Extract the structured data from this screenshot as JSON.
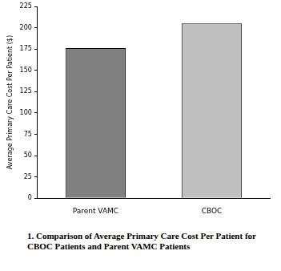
{
  "chart_data": {
    "type": "bar",
    "title": "1.  Comparison of Average Primary Care Cost Per Patient for CBOC Patients and Parent VAMC Patients",
    "y_label": "Average Primary Care Cost Per Patient ($)",
    "categories": [
      "Parent VAMC",
      "CBOC"
    ],
    "values": [
      176,
      205
    ],
    "colors": [
      "#808080",
      "#c0c0c0"
    ],
    "ylim": [
      0,
      225
    ],
    "yticks": [
      0,
      25,
      50,
      75,
      100,
      125,
      150,
      175,
      200,
      225
    ],
    "grid": false
  }
}
